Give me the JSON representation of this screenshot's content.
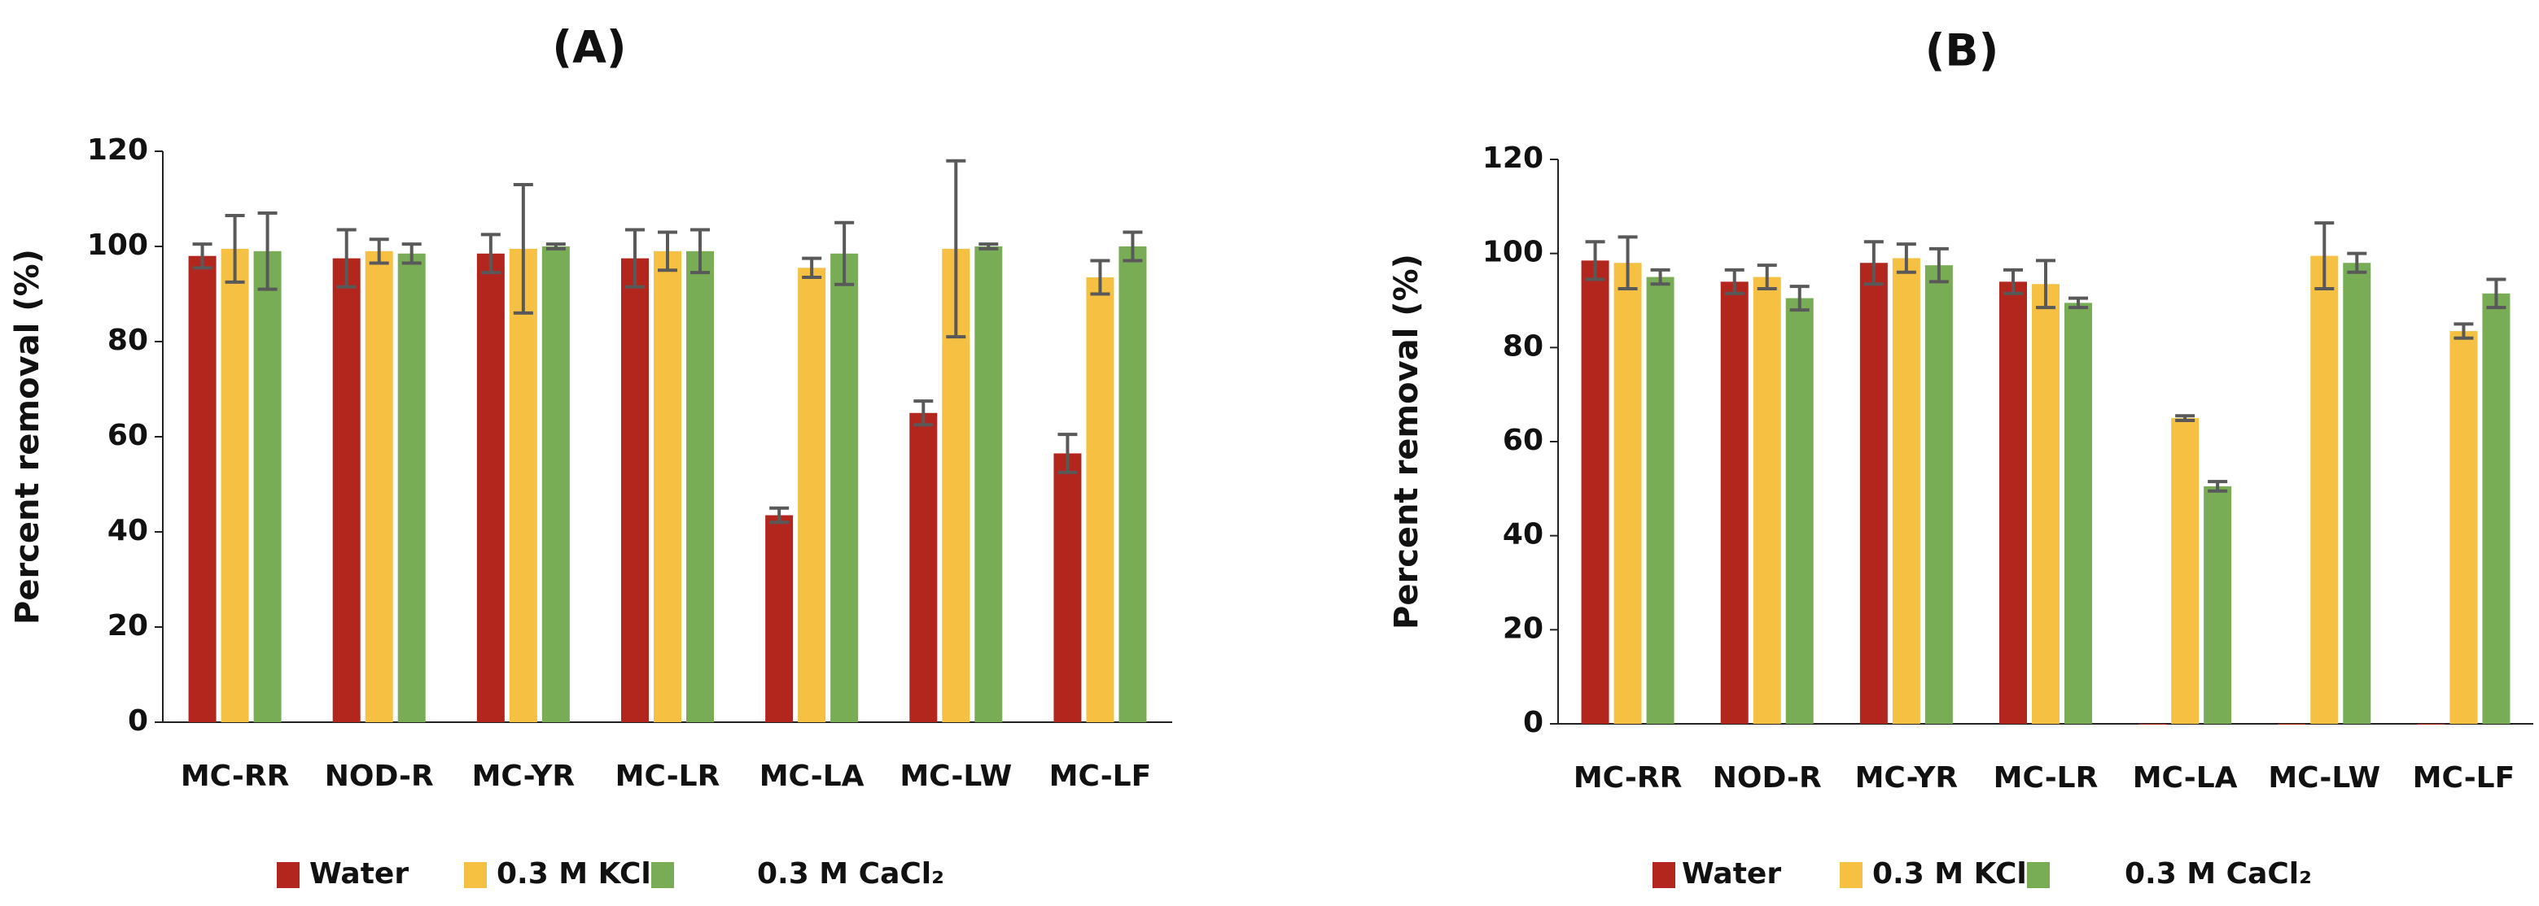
{
  "chart_data": [
    {
      "type": "bar",
      "title": "(A)",
      "ylabel": "Percent removal (%)",
      "categories": [
        "MC-RR",
        "NOD-R",
        "MC-YR",
        "MC-LR",
        "MC-LA",
        "MC-LW",
        "MC-LF"
      ],
      "series": [
        {
          "name": "Water",
          "color": "#b3261e",
          "values": [
            98,
            97.5,
            98.5,
            97.5,
            43.5,
            65,
            56.5
          ],
          "errors": [
            2.5,
            6,
            4,
            6,
            1.5,
            2.5,
            4
          ]
        },
        {
          "name": "0.3 M KCl",
          "color": "#f6c143",
          "values": [
            99.5,
            99,
            99.5,
            99,
            95.5,
            99.5,
            93.5
          ],
          "errors": [
            7,
            2.5,
            13.5,
            4,
            2,
            18.5,
            3.5
          ]
        },
        {
          "name": "0.3 M CaCl₂",
          "color": "#79ad55",
          "values": [
            99,
            98.5,
            100,
            99,
            98.5,
            100,
            100
          ],
          "errors": [
            8,
            2,
            0.5,
            4.5,
            6.5,
            0.5,
            3
          ]
        }
      ],
      "ylim": [
        0,
        120
      ],
      "yticks": [
        0,
        20,
        40,
        60,
        80,
        100,
        120
      ]
    },
    {
      "type": "bar",
      "title": "(B)",
      "ylabel": "Percent removal (%)",
      "categories": [
        "MC-RR",
        "NOD-R",
        "MC-YR",
        "MC-LR",
        "MC-LA",
        "MC-LW",
        "MC-LF"
      ],
      "series": [
        {
          "name": "Water",
          "color": "#b3261e",
          "values": [
            98.5,
            94,
            98,
            94,
            0,
            0,
            0
          ],
          "errors": [
            4,
            2.5,
            4.5,
            2.5,
            null,
            null,
            null
          ]
        },
        {
          "name": "0.3 M KCl",
          "color": "#f6c143",
          "values": [
            98,
            95,
            99,
            93.5,
            65,
            99.5,
            83.5
          ],
          "errors": [
            5.5,
            2.5,
            3,
            5,
            0.5,
            7,
            1.5
          ]
        },
        {
          "name": "0.3 M CaCl₂",
          "color": "#79ad55",
          "values": [
            95,
            90.5,
            97.5,
            89.5,
            50.5,
            98,
            91.5
          ],
          "errors": [
            1.5,
            2.5,
            3.5,
            1,
            1,
            2,
            3
          ]
        }
      ],
      "ylim": [
        0,
        120
      ],
      "yticks": [
        0,
        20,
        40,
        60,
        80,
        100,
        120
      ]
    }
  ]
}
